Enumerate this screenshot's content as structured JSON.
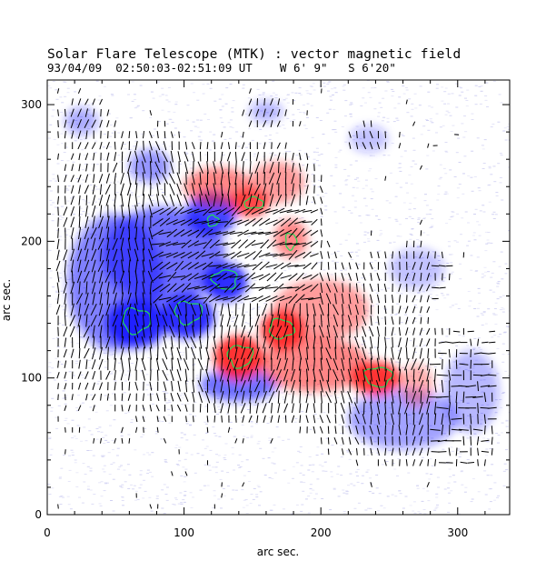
{
  "header": {
    "title": "Solar Flare Telescope (MTK) : vector magnetic field",
    "date": "93/04/09",
    "time_range": "02:50:03-02:51:09 UT",
    "position_w": "W 6' 9\"",
    "position_s": "S 6'20\""
  },
  "chart_data": {
    "type": "heatmap",
    "title": "Solar Flare Telescope (MTK) : vector magnetic field",
    "xlabel": "arc sec.",
    "ylabel": "arc sec.",
    "xlim": [
      0,
      338
    ],
    "ylim": [
      0,
      318
    ],
    "x_ticks": [
      0,
      100,
      200,
      300
    ],
    "y_ticks": [
      0,
      100,
      200,
      300
    ],
    "colors": {
      "positive": "#ff2020",
      "negative": "#1a1aff",
      "contour": "#22dd55",
      "background": "#ffffff",
      "noise": "#c8c8f0"
    },
    "positive_regions": [
      {
        "x": 140,
        "y": 115,
        "rx": 18,
        "ry": 16,
        "strength": 1.0
      },
      {
        "x": 172,
        "y": 135,
        "rx": 16,
        "ry": 14,
        "strength": 1.0
      },
      {
        "x": 240,
        "y": 100,
        "rx": 18,
        "ry": 12,
        "strength": 1.0
      },
      {
        "x": 195,
        "y": 110,
        "rx": 40,
        "ry": 20,
        "strength": 0.6
      },
      {
        "x": 200,
        "y": 150,
        "rx": 35,
        "ry": 22,
        "strength": 0.5
      },
      {
        "x": 148,
        "y": 228,
        "rx": 14,
        "ry": 10,
        "strength": 0.9
      },
      {
        "x": 125,
        "y": 240,
        "rx": 25,
        "ry": 14,
        "strength": 0.6
      },
      {
        "x": 178,
        "y": 202,
        "rx": 12,
        "ry": 14,
        "strength": 0.6
      },
      {
        "x": 168,
        "y": 243,
        "rx": 20,
        "ry": 15,
        "strength": 0.5
      },
      {
        "x": 270,
        "y": 95,
        "rx": 12,
        "ry": 15,
        "strength": 0.4
      }
    ],
    "negative_regions": [
      {
        "x": 65,
        "y": 140,
        "rx": 22,
        "ry": 18,
        "strength": 1.0
      },
      {
        "x": 102,
        "y": 145,
        "rx": 20,
        "ry": 16,
        "strength": 1.0
      },
      {
        "x": 130,
        "y": 170,
        "rx": 16,
        "ry": 14,
        "strength": 1.0
      },
      {
        "x": 120,
        "y": 220,
        "rx": 18,
        "ry": 16,
        "strength": 0.9
      },
      {
        "x": 85,
        "y": 190,
        "rx": 45,
        "ry": 35,
        "strength": 0.7
      },
      {
        "x": 50,
        "y": 170,
        "rx": 35,
        "ry": 50,
        "strength": 0.6
      },
      {
        "x": 140,
        "y": 95,
        "rx": 28,
        "ry": 12,
        "strength": 0.7
      },
      {
        "x": 260,
        "y": 70,
        "rx": 40,
        "ry": 22,
        "strength": 0.45
      },
      {
        "x": 310,
        "y": 90,
        "rx": 20,
        "ry": 30,
        "strength": 0.35
      },
      {
        "x": 270,
        "y": 180,
        "rx": 20,
        "ry": 15,
        "strength": 0.3
      },
      {
        "x": 75,
        "y": 255,
        "rx": 15,
        "ry": 12,
        "strength": 0.5
      },
      {
        "x": 25,
        "y": 288,
        "rx": 12,
        "ry": 10,
        "strength": 0.4
      },
      {
        "x": 160,
        "y": 295,
        "rx": 12,
        "ry": 8,
        "strength": 0.35
      },
      {
        "x": 235,
        "y": 275,
        "rx": 14,
        "ry": 10,
        "strength": 0.3
      }
    ],
    "contours": [
      {
        "x": 65,
        "y": 142,
        "rx": 10,
        "ry": 9
      },
      {
        "x": 103,
        "y": 148,
        "rx": 10,
        "ry": 8
      },
      {
        "x": 130,
        "y": 172,
        "rx": 9,
        "ry": 7
      },
      {
        "x": 121,
        "y": 215,
        "rx": 4,
        "ry": 4
      },
      {
        "x": 141,
        "y": 116,
        "rx": 9,
        "ry": 8
      },
      {
        "x": 171,
        "y": 136,
        "rx": 9,
        "ry": 7
      },
      {
        "x": 242,
        "y": 101,
        "rx": 10,
        "ry": 7
      },
      {
        "x": 151,
        "y": 228,
        "rx": 7,
        "ry": 4
      },
      {
        "x": 178,
        "y": 200,
        "rx": 4,
        "ry": 6
      }
    ]
  }
}
